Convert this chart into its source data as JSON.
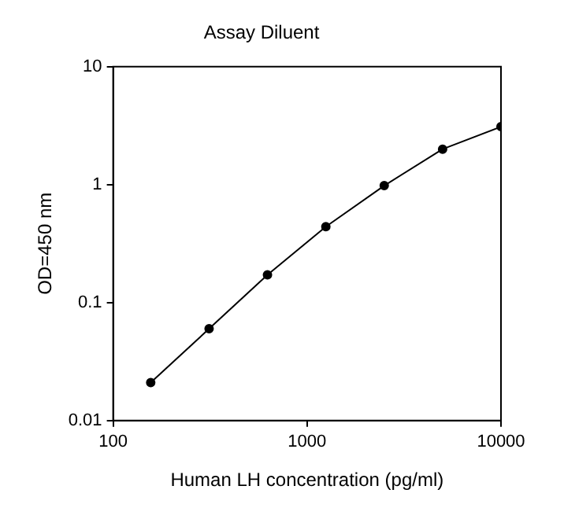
{
  "chart_data": {
    "type": "line",
    "title": "Assay Diluent",
    "xlabel": "Human LH concentration (pg/ml)",
    "ylabel": "OD=450 nm",
    "x": [
      156.25,
      312.5,
      625,
      1250,
      2500,
      5000,
      10000
    ],
    "series": [
      {
        "color": "#000000",
        "values": [
          0.021,
          0.06,
          0.172,
          0.44,
          0.98,
          2.0,
          3.1
        ]
      }
    ],
    "log": "xy",
    "xlim": [
      100,
      10000
    ],
    "ylim": [
      0.01,
      10
    ],
    "xticks": [
      100,
      1000,
      10000
    ],
    "yticks": [
      0.01,
      0.1,
      1,
      10
    ],
    "grid": false,
    "legend": false,
    "marker": "circle",
    "line_style": "solid"
  }
}
